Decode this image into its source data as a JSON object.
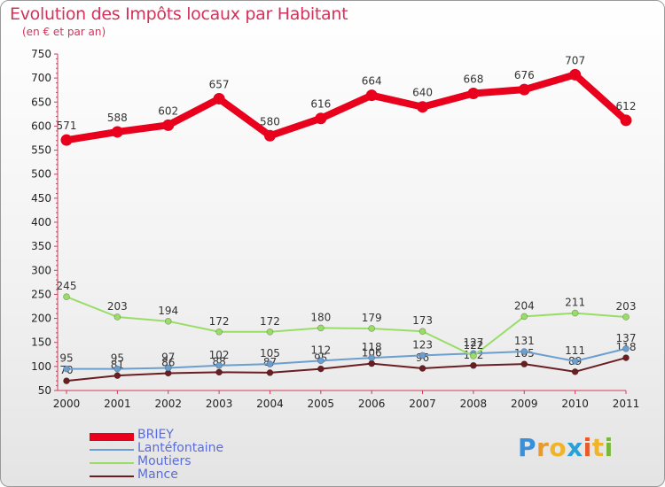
{
  "header": {
    "title": "Evolution des Impôts locaux par Habitant",
    "subtitle": "(en € et par an)"
  },
  "brand": {
    "letters": [
      "P",
      "r",
      "o",
      "x",
      "i",
      "t",
      "i"
    ],
    "colors": [
      "#3a8fd9",
      "#e89a2c",
      "#f0b42a",
      "#2aa0d8",
      "#e85a2a",
      "#f0b42a",
      "#7ab83a"
    ]
  },
  "chart_data": {
    "type": "line",
    "title": "Evolution des Impôts locaux par Habitant",
    "subtitle": "(en € et par an)",
    "xlabel": "",
    "ylabel": "",
    "ylim": [
      50,
      750
    ],
    "yticks": [
      50,
      100,
      150,
      200,
      250,
      300,
      350,
      400,
      450,
      500,
      550,
      600,
      650,
      700,
      750
    ],
    "grid": false,
    "legend_position": "bottom-left",
    "categories": [
      "2000",
      "2001",
      "2002",
      "2003",
      "2004",
      "2005",
      "2006",
      "2007",
      "2008",
      "2009",
      "2010",
      "2011"
    ],
    "series": [
      {
        "name": "BRIEY",
        "color": "#e8001c",
        "values": [
          571,
          588,
          602,
          657,
          580,
          616,
          664,
          640,
          668,
          676,
          707,
          612
        ]
      },
      {
        "name": "Lantéfontaine",
        "color": "#6b9fcf",
        "values": [
          95,
          95,
          97,
          102,
          105,
          112,
          118,
          123,
          127,
          131,
          111,
          137
        ]
      },
      {
        "name": "Moutiers",
        "color": "#99dd66",
        "values": [
          245,
          203,
          194,
          172,
          172,
          180,
          179,
          173,
          122,
          204,
          211,
          203
        ]
      },
      {
        "name": "Mance",
        "color": "#6b1e22",
        "values": [
          70,
          81,
          86,
          88,
          87,
          95,
          106,
          96,
          102,
          105,
          89,
          118
        ]
      }
    ]
  }
}
